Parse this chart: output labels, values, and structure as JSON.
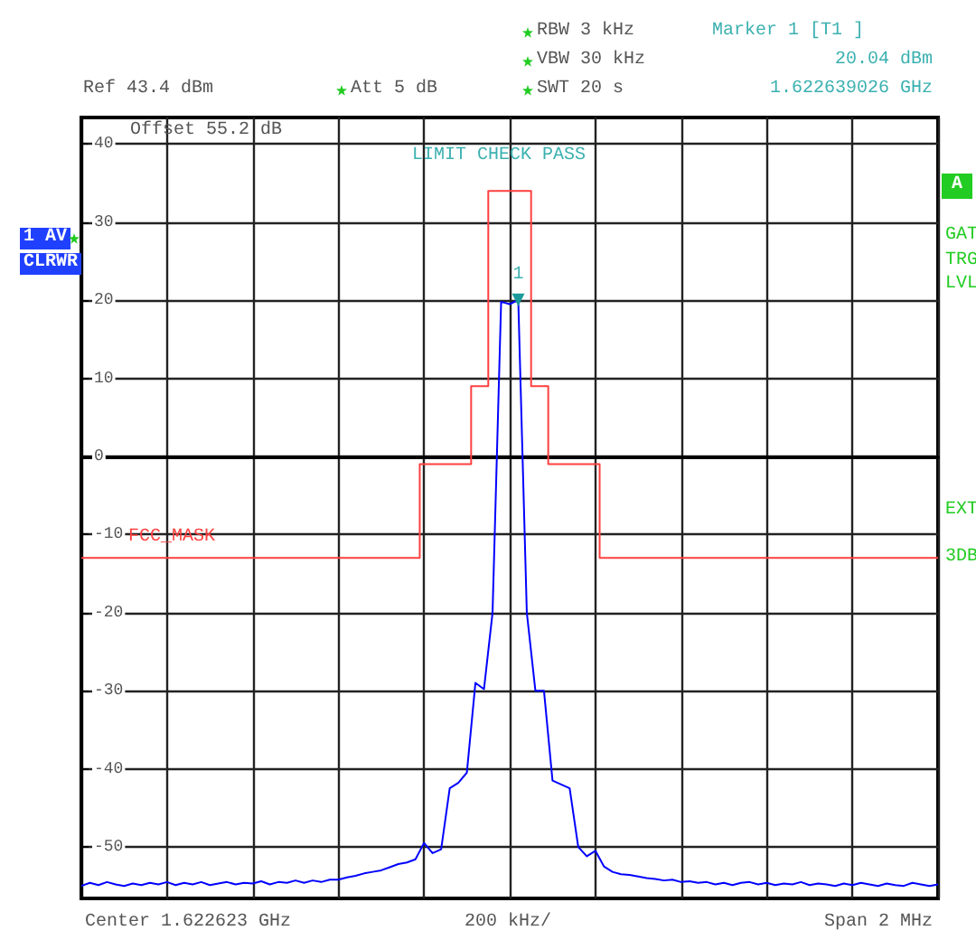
{
  "chart_data": {
    "type": "line",
    "annotations": [
      "Ref 43.4 dBm",
      "Att 5 dB",
      "RBW 3 kHz",
      "VBW 30 kHz",
      "SWT 20 s",
      "Marker 1 [T1 ]",
      "20.04 dBm",
      "1.622639026 GHz",
      "Offset 55.2 dB",
      "LIMIT CHECK PASS",
      "1 AV",
      "CLRWR",
      "A",
      "GAT",
      "TRG",
      "LVL",
      "EXT",
      "3DB",
      "Center 1.622623 GHz",
      "200 kHz/",
      "Span 2 MHz",
      {
        "text": "1",
        "y": 20.04
      }
    ],
    "categories": [
      null,
      null,
      null,
      null,
      null,
      null,
      null,
      null,
      null,
      null,
      null,
      null,
      null,
      null,
      null,
      null,
      null,
      null,
      null,
      null,
      null,
      null,
      null,
      null,
      null,
      null,
      null,
      null,
      null,
      null,
      null,
      null,
      null,
      null,
      null,
      null,
      null,
      null,
      null,
      null,
      null,
      null,
      null,
      null,
      null,
      null,
      null,
      null,
      null,
      null,
      null,
      null,
      null,
      null,
      null,
      null,
      null,
      null,
      null,
      null,
      null,
      null,
      null,
      null,
      null,
      null,
      null,
      null,
      null,
      null,
      null,
      null,
      null,
      null,
      null,
      null,
      null,
      null,
      null,
      null,
      null,
      null,
      null,
      null,
      null,
      null,
      null,
      null,
      null,
      null,
      null,
      null,
      null,
      null,
      null,
      null,
      null,
      null,
      null,
      null,
      null
    ],
    "series": [
      {
        "color": "#0000ff",
        "values": [
          -55,
          -54.6,
          -54.9,
          -54.5,
          -54.8,
          -55,
          -54.7,
          -54.9,
          -54.6,
          -54.8,
          -54.5,
          -54.9,
          -54.6,
          -54.8,
          -54.5,
          -54.9,
          -54.7,
          -54.5,
          -54.8,
          -54.6,
          -54.7,
          -54.4,
          -54.8,
          -54.5,
          -54.6,
          -54.3,
          -54.6,
          -54.3,
          -54.5,
          -54.2,
          -54.2,
          -53.9,
          -53.7,
          -53.4,
          -53.2,
          -53,
          -52.6,
          -52.2,
          -52,
          -51.6,
          -49.5,
          -50.8,
          -50.3,
          -42.5,
          -41.8,
          -40.5,
          -29,
          -29.8,
          -20,
          19.8,
          19.5,
          20.04,
          -20,
          -30,
          -30,
          -41.5,
          -42,
          -42.5,
          -50,
          -51.2,
          -50.5,
          -52.5,
          -53.2,
          -53.5,
          -53.6,
          -53.8,
          -54,
          -54.1,
          -54.3,
          -54.2,
          -54.5,
          -54.4,
          -54.6,
          -54.5,
          -54.8,
          -54.6,
          -54.9,
          -54.6,
          -54.5,
          -54.8,
          -54.6,
          -54.9,
          -54.7,
          -54.8,
          -54.5,
          -54.9,
          -54.7,
          -54.8,
          -55,
          -54.7,
          -54.9,
          -54.6,
          -54.8,
          -55,
          -54.7,
          -54.9,
          -55,
          -54.6,
          -54.8,
          -55,
          -54.8
        ]
      },
      {
        "name": "FCC_MASK",
        "type": "step",
        "color": "#ff4040",
        "values": [
          -13,
          -13,
          -13,
          -13,
          -13,
          -13,
          -13,
          -13,
          -13,
          -13,
          -13,
          -13,
          -13,
          -13,
          -13,
          -13,
          -13,
          -13,
          -13,
          -13,
          -13,
          -13,
          -13,
          -13,
          -13,
          -13,
          -13,
          -13,
          -13,
          -13,
          -13,
          -13,
          -13,
          -13,
          -13,
          -13,
          -13,
          -13,
          -13,
          -13,
          -1,
          -1,
          -1,
          -1,
          -1,
          -1,
          9,
          9,
          34,
          34,
          34,
          34,
          34,
          9,
          9,
          -1,
          -1,
          -1,
          -1,
          -1,
          -1,
          -13,
          -13,
          -13,
          -13,
          -13,
          -13,
          -13,
          -13,
          -13,
          -13,
          -13,
          -13,
          -13,
          -13,
          -13,
          -13,
          -13,
          -13,
          -13,
          -13,
          -13,
          -13,
          -13,
          -13,
          -13,
          -13,
          -13,
          -13,
          -13,
          -13,
          -13,
          -13,
          -13,
          -13,
          -13,
          -13,
          -13,
          -13,
          -13,
          -13
        ]
      }
    ],
    "ylim": [
      -56.6,
      43.4
    ],
    "yticks": [
      -50,
      -40,
      -30,
      -20,
      -10,
      0,
      10,
      20,
      30,
      40
    ],
    "tick_labels": "y",
    "grid": true,
    "legend": false,
    "line_style": "solid"
  }
}
